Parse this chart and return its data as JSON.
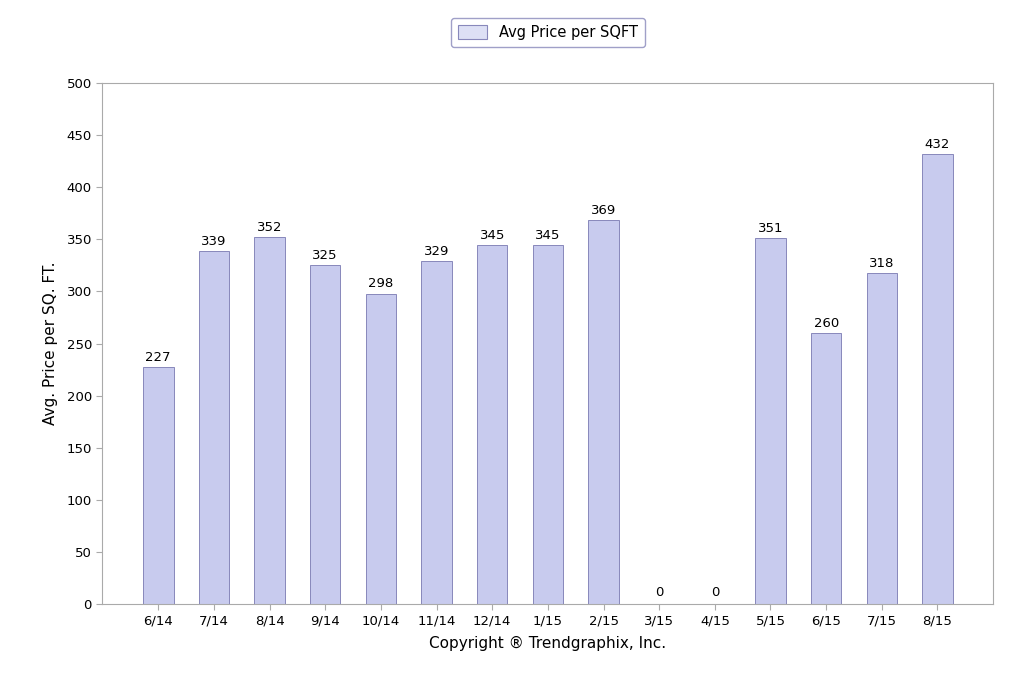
{
  "categories": [
    "6/14",
    "7/14",
    "8/14",
    "9/14",
    "10/14",
    "11/14",
    "12/14",
    "1/15",
    "2/15",
    "3/15",
    "4/15",
    "5/15",
    "6/15",
    "7/15",
    "8/15"
  ],
  "values": [
    227,
    339,
    352,
    325,
    298,
    329,
    345,
    345,
    369,
    0,
    0,
    351,
    260,
    318,
    432
  ],
  "bar_color": "#c8cbee",
  "bar_edgecolor": "#8888bb",
  "ylabel": "Avg. Price per SQ. FT.",
  "xlabel": "Copyright ® Trendgraphix, Inc.",
  "ylim": [
    0,
    500
  ],
  "yticks": [
    0,
    50,
    100,
    150,
    200,
    250,
    300,
    350,
    400,
    450,
    500
  ],
  "legend_label": "Avg Price per SQFT",
  "legend_facecolor": "#dde0f5",
  "legend_edgecolor": "#8888bb",
  "background_color": "#ffffff",
  "bar_width": 0.55,
  "label_fontsize": 9.5,
  "axis_label_fontsize": 11,
  "tick_fontsize": 9.5,
  "legend_fontsize": 10.5,
  "spine_color": "#aaaaaa"
}
